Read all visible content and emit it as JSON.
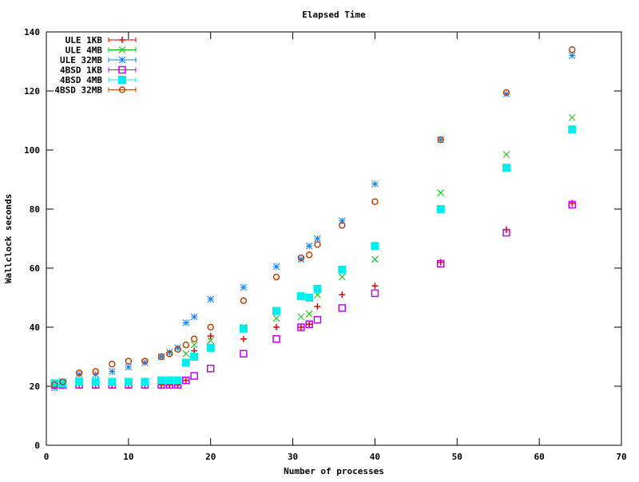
{
  "chart_data": {
    "type": "scatter",
    "title": "Elapsed Time",
    "xlabel": "Number of processes",
    "ylabel": "Wallclock seconds",
    "xlim": [
      0,
      70
    ],
    "ylim": [
      0,
      140
    ],
    "xticks": [
      0,
      10,
      20,
      30,
      40,
      50,
      60,
      70
    ],
    "yticks": [
      0,
      20,
      40,
      60,
      80,
      100,
      120,
      140
    ],
    "grid": false,
    "legend_position": "top-left",
    "x": [
      1,
      2,
      4,
      6,
      8,
      10,
      12,
      14,
      15,
      16,
      17,
      18,
      20,
      24,
      28,
      31,
      32,
      33,
      36,
      40,
      48,
      56,
      64
    ],
    "series": [
      {
        "name": "ULE 1KB",
        "color": "#e00000",
        "marker": "plus",
        "values": [
          20.5,
          21,
          20.5,
          20.5,
          20.5,
          20.5,
          20.5,
          20.5,
          20.5,
          20.5,
          22,
          32,
          37,
          36,
          40,
          40,
          41,
          47,
          51,
          54,
          62,
          73,
          82
        ]
      },
      {
        "name": "ULE 4MB",
        "color": "#00c000",
        "marker": "x",
        "values": [
          21,
          21.5,
          21.5,
          21.5,
          21.5,
          21.5,
          21.5,
          22,
          22,
          22,
          31,
          34,
          35.5,
          40,
          43,
          43.5,
          44.5,
          51,
          57,
          63,
          85.5,
          98.5,
          111
        ]
      },
      {
        "name": "ULE 32MB",
        "color": "#0080ff",
        "marker": "star",
        "values": [
          19.5,
          21.5,
          24,
          24,
          25,
          26.5,
          28,
          30,
          31.5,
          33,
          41.5,
          43.5,
          49.5,
          53.5,
          60.5,
          63,
          67.5,
          70,
          76,
          88.5,
          103.5,
          119,
          132
        ]
      },
      {
        "name": "4BSD 1KB",
        "color": "#c000ff",
        "marker": "box",
        "values": [
          20.5,
          20.5,
          20.5,
          20.5,
          20.5,
          20.5,
          20.5,
          20.5,
          20.5,
          20.5,
          22,
          23.5,
          26,
          31,
          36,
          40,
          41,
          42.5,
          46.5,
          51.5,
          61.5,
          72,
          81.5
        ]
      },
      {
        "name": "4BSD 4MB",
        "color": "#00eeee",
        "marker": "filled-box",
        "values": [
          21,
          21,
          21.5,
          21.5,
          21.5,
          21.5,
          21.5,
          22,
          22,
          22,
          28,
          30,
          33,
          39.5,
          45.5,
          50.5,
          50,
          53,
          59.5,
          67.5,
          80,
          94,
          107
        ]
      },
      {
        "name": "4BSD 32MB",
        "color": "#c04000",
        "marker": "circle",
        "values": [
          20.5,
          21.5,
          24.5,
          25,
          27.5,
          28.5,
          28.5,
          30,
          31,
          32.5,
          34,
          36,
          40,
          49,
          57,
          63.5,
          64.5,
          68,
          74.5,
          82.5,
          103.5,
          119.5,
          134
        ]
      }
    ]
  }
}
